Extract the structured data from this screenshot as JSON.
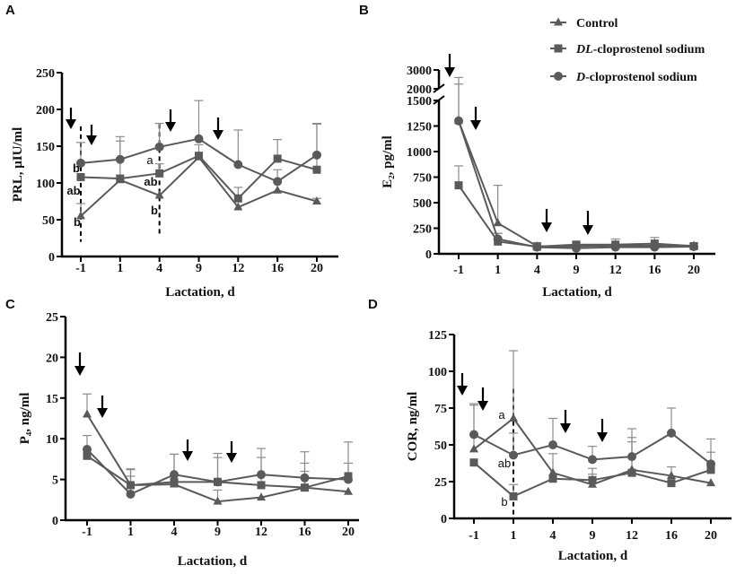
{
  "colors": {
    "line": "#5a5a5a",
    "error_bar": "#8c8c8c",
    "axis": "#000000"
  },
  "legend": {
    "placement": "top-right of panel B",
    "items": [
      {
        "label": "Control",
        "marker": "triangle"
      },
      {
        "label_prefix": "DL",
        "label": "-cloprostenol sodium",
        "marker": "square"
      },
      {
        "label_prefix": "D",
        "label": "-cloprostenol sodium",
        "marker": "circle"
      }
    ]
  },
  "chart_data": [
    {
      "panel": "A",
      "type": "line",
      "xlabel": "Lactation, d",
      "ylabel": "PRL, μIU/ml",
      "categories": [
        "-1",
        "1",
        "4",
        "9",
        "12",
        "16",
        "20"
      ],
      "yticks": [
        0,
        50,
        100,
        150,
        200,
        250
      ],
      "ylim": [
        0,
        250
      ],
      "series": [
        {
          "name": "Control",
          "values": [
            55,
            104,
            83,
            135,
            67,
            90,
            75
          ],
          "error_upper": [
            72,
            null,
            null,
            null,
            null,
            null,
            79
          ]
        },
        {
          "name": "DL-cloprostenol sodium",
          "values": [
            108,
            106,
            113,
            137,
            79,
            133,
            118
          ],
          "error_upper": [
            null,
            157,
            126,
            152,
            94,
            159,
            180
          ]
        },
        {
          "name": "D-cloprostenol sodium",
          "values": [
            127,
            132,
            149,
            160,
            125,
            102,
            138
          ],
          "error_upper": [
            155,
            163,
            181,
            212,
            172,
            118,
            181
          ]
        }
      ],
      "dashed_lines_at": [
        "-1",
        "4"
      ],
      "annotations": [
        {
          "day": "-1",
          "text": "b"
        },
        {
          "day": "-1",
          "text": "ab"
        },
        {
          "day": "-1",
          "text": "b"
        },
        {
          "day": "4",
          "text": "a"
        },
        {
          "day": "4",
          "text": "ab"
        },
        {
          "day": "4",
          "text": "b"
        }
      ],
      "arrows": 4
    },
    {
      "panel": "B",
      "type": "line",
      "xlabel": "Lactation, d",
      "ylabel": "E₂, pg/ml",
      "categories": [
        "-1",
        "1",
        "4",
        "9",
        "12",
        "16",
        "20"
      ],
      "yticks": [
        0,
        250,
        500,
        750,
        1000,
        1250,
        1500,
        2000,
        3000
      ],
      "ylim": [
        0,
        3000
      ],
      "axis_break": [
        1500,
        2000
      ],
      "series": [
        {
          "name": "Control",
          "values": [
            1300,
            300,
            75,
            75,
            80,
            80,
            80
          ],
          "error_upper": [
            2600,
            670,
            null,
            null,
            null,
            null,
            null
          ]
        },
        {
          "name": "DL-cloprostenol sodium",
          "values": [
            670,
            120,
            70,
            90,
            90,
            100,
            75
          ],
          "error_upper": [
            860,
            200,
            110,
            110,
            145,
            160,
            100
          ]
        },
        {
          "name": "D-cloprostenol sodium",
          "values": [
            1300,
            145,
            65,
            55,
            65,
            65,
            70
          ],
          "error_upper": [
            2250,
            200,
            null,
            null,
            null,
            null,
            null
          ]
        }
      ],
      "arrows": 4
    },
    {
      "panel": "C",
      "type": "line",
      "xlabel": "Lactation, d",
      "ylabel": "P₄, ng/ml",
      "categories": [
        "-1",
        "1",
        "4",
        "9",
        "12",
        "16",
        "20"
      ],
      "yticks": [
        0,
        5,
        10,
        15,
        20,
        25
      ],
      "ylim": [
        0,
        25
      ],
      "series": [
        {
          "name": "Control",
          "values": [
            13.0,
            4.3,
            4.4,
            2.3,
            2.8,
            4.0,
            3.5
          ],
          "error_upper": [
            15.5,
            5.4,
            null,
            3.7,
            null,
            6.0,
            null
          ]
        },
        {
          "name": "DL-cloprostenol sodium",
          "values": [
            7.9,
            4.3,
            4.7,
            4.7,
            4.3,
            4.0,
            5.4
          ],
          "error_upper": [
            10.4,
            6.3,
            8.1,
            7.7,
            7.7,
            7.0,
            9.6
          ]
        },
        {
          "name": "D-cloprostenol sodium",
          "values": [
            8.7,
            3.2,
            5.6,
            4.7,
            5.6,
            5.2,
            5.0
          ],
          "error_upper": [
            null,
            6.2,
            8.1,
            8.2,
            8.8,
            8.4,
            7.0
          ]
        }
      ],
      "arrows": 4
    },
    {
      "panel": "D",
      "type": "line",
      "xlabel": "Lactation, d",
      "ylabel": "COR, ng/ml",
      "categories": [
        "-1",
        "1",
        "4",
        "9",
        "12",
        "16",
        "20"
      ],
      "yticks": [
        0,
        25,
        50,
        75,
        100,
        125
      ],
      "ylim": [
        0,
        125
      ],
      "series": [
        {
          "name": "Control",
          "values": [
            47,
            68,
            31,
            23,
            33,
            29,
            24
          ],
          "error_upper": [
            77,
            114,
            44,
            30,
            55,
            35,
            null
          ]
        },
        {
          "name": "DL-cloprostenol sodium",
          "values": [
            38,
            15,
            27,
            26,
            31,
            24,
            33
          ],
          "error_upper": [
            null,
            23,
            null,
            34,
            52,
            null,
            45
          ]
        },
        {
          "name": "D-cloprostenol sodium",
          "values": [
            57,
            43,
            50,
            40,
            42,
            58,
            37
          ],
          "error_upper": [
            78,
            58,
            68,
            49,
            61,
            75,
            54
          ]
        }
      ],
      "dashed_lines_at": [
        "1"
      ],
      "annotations": [
        {
          "day": "1",
          "text": "a"
        },
        {
          "day": "1",
          "text": "ab"
        },
        {
          "day": "1",
          "text": "b"
        }
      ],
      "arrows": 4
    }
  ]
}
